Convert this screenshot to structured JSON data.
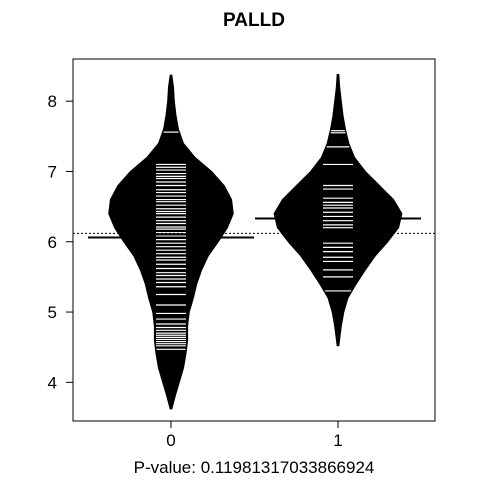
{
  "chart_data": {
    "type": "beanplot",
    "title": "PALLD",
    "xlabel": "P-value: 0.11981317033866924",
    "ylabel": "",
    "categories": [
      "0",
      "1"
    ],
    "x_ticks": [
      "0",
      "1"
    ],
    "y_ticks": [
      4,
      5,
      6,
      7,
      8
    ],
    "ylim": [
      3.45,
      8.6
    ],
    "overall_mean": 6.12,
    "grid": false,
    "legend": "none",
    "fill_color": "#000000",
    "line_color": "#ffffff",
    "series": [
      {
        "category": "0",
        "mean": 6.06,
        "ymin": 3.62,
        "ymax": 8.37,
        "density": [
          [
            3.62,
            0.01
          ],
          [
            3.8,
            0.05
          ],
          [
            4.0,
            0.1
          ],
          [
            4.2,
            0.15
          ],
          [
            4.4,
            0.18
          ],
          [
            4.6,
            0.2
          ],
          [
            4.8,
            0.2
          ],
          [
            5.0,
            0.22
          ],
          [
            5.2,
            0.27
          ],
          [
            5.4,
            0.31
          ],
          [
            5.6,
            0.37
          ],
          [
            5.8,
            0.45
          ],
          [
            6.0,
            0.57
          ],
          [
            6.2,
            0.68
          ],
          [
            6.4,
            0.75
          ],
          [
            6.6,
            0.73
          ],
          [
            6.8,
            0.64
          ],
          [
            7.0,
            0.49
          ],
          [
            7.2,
            0.29
          ],
          [
            7.4,
            0.15
          ],
          [
            7.6,
            0.09
          ],
          [
            7.8,
            0.06
          ],
          [
            8.0,
            0.04
          ],
          [
            8.2,
            0.03
          ],
          [
            8.37,
            0.01
          ]
        ],
        "points": [
          4.47,
          4.52,
          4.55,
          4.58,
          4.61,
          4.64,
          4.67,
          4.7,
          4.74,
          4.78,
          4.83,
          4.9,
          4.98,
          5.1,
          5.25,
          5.36,
          5.42,
          5.47,
          5.52,
          5.56,
          5.62,
          5.68,
          5.74,
          5.78,
          5.83,
          5.88,
          5.93,
          5.98,
          6.03,
          6.08,
          6.13,
          6.18,
          6.21,
          6.26,
          6.3,
          6.35,
          6.4,
          6.43,
          6.47,
          6.52,
          6.57,
          6.6,
          6.65,
          6.7,
          6.74,
          6.8,
          6.85,
          6.9,
          6.93,
          6.97,
          7.02,
          7.06,
          7.1,
          7.56
        ]
      },
      {
        "category": "1",
        "mean": 6.33,
        "ymin": 4.52,
        "ymax": 8.38,
        "density": [
          [
            4.52,
            0.01
          ],
          [
            4.8,
            0.04
          ],
          [
            5.0,
            0.07
          ],
          [
            5.2,
            0.12
          ],
          [
            5.4,
            0.22
          ],
          [
            5.6,
            0.33
          ],
          [
            5.8,
            0.45
          ],
          [
            6.0,
            0.6
          ],
          [
            6.2,
            0.73
          ],
          [
            6.4,
            0.77
          ],
          [
            6.6,
            0.67
          ],
          [
            6.8,
            0.5
          ],
          [
            7.0,
            0.33
          ],
          [
            7.2,
            0.2
          ],
          [
            7.4,
            0.13
          ],
          [
            7.6,
            0.09
          ],
          [
            7.8,
            0.06
          ],
          [
            8.0,
            0.04
          ],
          [
            8.2,
            0.02
          ],
          [
            8.38,
            0.01
          ]
        ],
        "points": [
          5.3,
          5.5,
          5.6,
          5.72,
          5.78,
          5.86,
          5.92,
          5.98,
          6.2,
          6.24,
          6.3,
          6.36,
          6.42,
          6.48,
          6.52,
          6.56,
          6.62,
          6.75,
          6.8,
          7.1,
          7.35,
          7.55,
          7.58
        ]
      }
    ]
  }
}
